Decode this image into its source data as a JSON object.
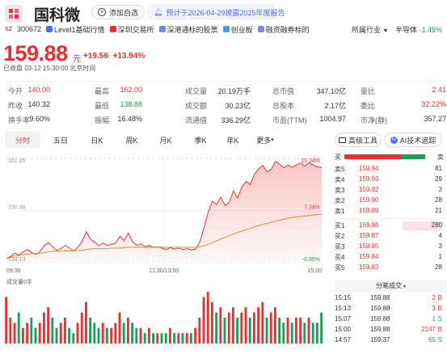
{
  "header": {
    "name": "国科微",
    "code": "300672",
    "market_badge": "SZ",
    "add_watchlist": "添加自选",
    "report_notice": "预计于2026-04-29披露2025年度报告",
    "tags": [
      "Level1基础行情",
      "深圳交易所",
      "深港通标的股票",
      "创业板",
      "融资融券标的"
    ],
    "sector_label": "所属行业",
    "sector_name": "半导体",
    "sector_change": "-1.45%"
  },
  "quote": {
    "price": "159.88",
    "unit": "元",
    "change": "+19.56",
    "change_pct": "+13.94%",
    "timestamp": "已收盘 03-12 15:30:00 北京时间"
  },
  "stats": [
    [
      {
        "label": "今开",
        "value": "140.00",
        "color": "#e93030"
      },
      {
        "label": "最高",
        "value": "162.00",
        "color": "#e93030"
      },
      {
        "label": "成交量",
        "value": "20.19万手",
        "color": "#333"
      },
      {
        "label": "总市值",
        "value": "347.10亿",
        "color": "#333"
      },
      {
        "label": "量比",
        "value": "2.41",
        "color": "#e93030"
      }
    ],
    [
      {
        "label": "昨收",
        "value": "140.32",
        "color": "#333"
      },
      {
        "label": "最低",
        "value": "138.88",
        "color": "#1b9e5a"
      },
      {
        "label": "成交额",
        "value": "30.23亿",
        "color": "#333"
      },
      {
        "label": "总股本",
        "value": "2.17亿",
        "color": "#333"
      },
      {
        "label": "委比",
        "value": "32.22%",
        "color": "#e93030"
      }
    ],
    [
      {
        "label": "换手率",
        "value": "9.60%",
        "color": "#333"
      },
      {
        "label": "振幅",
        "value": "16.48%",
        "color": "#333"
      },
      {
        "label": "流通值",
        "value": "336.29亿",
        "color": "#333"
      },
      {
        "label": "市盈(TTM)",
        "value": "1004.97",
        "color": "#333"
      },
      {
        "label": "市净(静)",
        "value": "357.27",
        "color": "#333"
      }
    ]
  ],
  "tabs": [
    "分时",
    "五日",
    "日K",
    "周K",
    "月K",
    "季K",
    "年K",
    "更多"
  ],
  "tools": {
    "advanced": "高级工具",
    "ai": "AI技术追踪"
  },
  "chart_data": {
    "type": "line",
    "y_labels_left": [
      "161.85",
      "150.49",
      "139.13"
    ],
    "y_labels_right": [
      "15.34%",
      "7.24%",
      "-0.85%"
    ],
    "x_labels": [
      "09:30",
      "11:30/13:00",
      "15:00"
    ],
    "ylim": [
      139.13,
      161.85
    ],
    "volume_label": "成交量0手",
    "price": [
      140.0,
      140.5,
      141.2,
      140.8,
      141.5,
      142.0,
      141.3,
      140.9,
      141.6,
      142.8,
      143.5,
      142.6,
      141.8,
      142.2,
      142.9,
      142.3,
      141.7,
      142.5,
      143.8,
      145.9,
      144.2,
      143.6,
      142.8,
      143.4,
      142.9,
      143.1,
      143.4,
      144.9,
      143.9,
      145.6,
      143.7,
      142.9,
      143.2,
      142.6,
      142.9,
      142.4,
      142.6,
      142.3,
      142.0,
      142.4,
      142.1,
      142.3,
      142.0,
      142.2,
      141.9,
      142.1,
      143.6,
      146.8,
      150.2,
      152.5,
      151.8,
      153.4,
      151.6,
      152.3,
      154.8,
      153.2,
      155.6,
      156.8,
      156.2,
      158.4,
      159.6,
      160.3,
      158.9,
      159.5,
      161.2,
      160.6,
      159.8,
      160.4,
      159.9,
      160.5,
      160.8,
      160.2,
      160.9,
      160.4,
      160.0,
      159.9
    ],
    "avg": [
      140.0,
      140.3,
      140.6,
      140.7,
      140.9,
      141.0,
      141.1,
      141.1,
      141.2,
      141.3,
      141.5,
      141.6,
      141.6,
      141.6,
      141.7,
      141.7,
      141.7,
      141.8,
      141.8,
      142.0,
      142.1,
      142.2,
      142.2,
      142.2,
      142.2,
      142.3,
      142.3,
      142.3,
      142.4,
      142.5,
      142.5,
      142.5,
      142.5,
      142.5,
      142.5,
      142.5,
      142.5,
      142.5,
      142.5,
      142.5,
      142.5,
      142.5,
      142.5,
      142.5,
      142.5,
      142.5,
      142.6,
      142.8,
      143.1,
      143.5,
      143.9,
      144.3,
      144.6,
      145.0,
      145.4,
      145.7,
      146.0,
      146.3,
      146.6,
      146.9,
      147.2,
      147.5,
      147.7,
      147.9,
      148.2,
      148.4,
      148.6,
      148.8,
      149.0,
      149.1,
      149.2,
      149.3,
      149.4,
      149.5,
      149.6,
      149.6
    ],
    "volume": [
      9,
      5,
      4,
      6,
      3,
      4,
      5,
      3,
      4,
      6,
      7,
      5,
      3,
      4,
      5,
      3,
      2,
      4,
      6,
      8,
      5,
      4,
      3,
      4,
      3,
      3,
      4,
      6,
      4,
      5,
      4,
      3,
      3,
      2,
      3,
      2,
      2,
      2,
      2,
      3,
      2,
      2,
      2,
      2,
      2,
      3,
      5,
      9,
      10,
      8,
      6,
      7,
      5,
      6,
      7,
      5,
      6,
      7,
      5,
      6,
      7,
      8,
      5,
      6,
      7,
      5,
      4,
      5,
      4,
      5,
      5,
      4,
      5,
      4,
      4,
      6
    ],
    "volume_up": [
      1,
      1,
      1,
      0,
      1,
      1,
      0,
      0,
      1,
      1,
      1,
      0,
      0,
      1,
      1,
      0,
      0,
      1,
      1,
      1,
      0,
      0,
      0,
      1,
      0,
      1,
      1,
      1,
      0,
      1,
      0,
      0,
      1,
      0,
      1,
      0,
      1,
      0,
      0,
      1,
      0,
      1,
      0,
      1,
      0,
      1,
      1,
      1,
      1,
      1,
      0,
      1,
      0,
      1,
      1,
      0,
      1,
      1,
      0,
      1,
      1,
      1,
      0,
      1,
      1,
      0,
      0,
      1,
      0,
      1,
      1,
      0,
      1,
      0,
      0,
      0
    ]
  },
  "order_book": {
    "header_left": "买",
    "header_right": "卖",
    "asks": [
      {
        "label": "卖5",
        "price": "159.94",
        "vol": "81"
      },
      {
        "label": "卖4",
        "price": "159.93",
        "vol": "29"
      },
      {
        "label": "卖3",
        "price": "159.92",
        "vol": "3"
      },
      {
        "label": "卖2",
        "price": "159.90",
        "vh": "28",
        "vol": "28"
      },
      {
        "label": "卖1",
        "price": "159.89",
        "vol": "21"
      }
    ],
    "bids": [
      {
        "label": "买1",
        "price": "159.88",
        "vol": "280"
      },
      {
        "label": "买2",
        "price": "159.87",
        "vol": "4"
      },
      {
        "label": "买3",
        "price": "159.85",
        "vol": "3"
      },
      {
        "label": "买4",
        "price": "159.84",
        "vol": "1"
      },
      {
        "label": "买5",
        "price": "159.83",
        "vol": "28"
      }
    ],
    "ticks_title": "分笔成交",
    "ticks": [
      {
        "time": "15:15",
        "price": "159.88",
        "vol": "2",
        "side": "B"
      },
      {
        "time": "15:13",
        "price": "159.88",
        "vol": "3",
        "side": "B"
      },
      {
        "time": "15:07",
        "price": "159.88",
        "vol": "1",
        "side": "S"
      },
      {
        "time": "15:00",
        "price": "159.88",
        "vol": "2147",
        "side": "B"
      },
      {
        "time": "14:57",
        "price": "159.37",
        "vol": "65",
        "side": "S"
      }
    ]
  },
  "colors": {
    "up": "#e93030",
    "down": "#1b9e5a",
    "avg": "#f08a24"
  }
}
